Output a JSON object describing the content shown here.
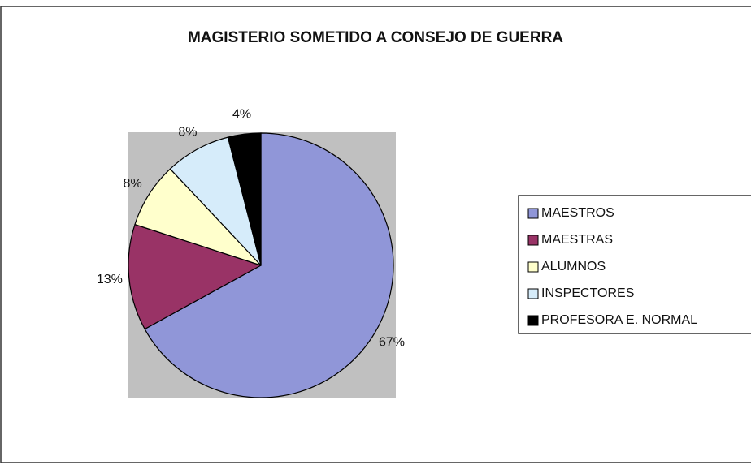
{
  "chart_data": {
    "type": "pie",
    "title": "MAGISTERIO SOMETIDO A CONSEJO DE GUERRA",
    "categories": [
      "MAESTROS",
      "MAESTRAS",
      "ALUMNOS",
      "INSPECTORES",
      "PROFESORA E. NORMAL"
    ],
    "values": [
      67,
      13,
      8,
      8,
      4
    ],
    "value_labels": [
      "67%",
      "13%",
      "8%",
      "8%",
      "4%"
    ],
    "colors": [
      "#9096d8",
      "#993366",
      "#ffffcc",
      "#d6ecfa",
      "#000000"
    ],
    "legend": "right"
  }
}
